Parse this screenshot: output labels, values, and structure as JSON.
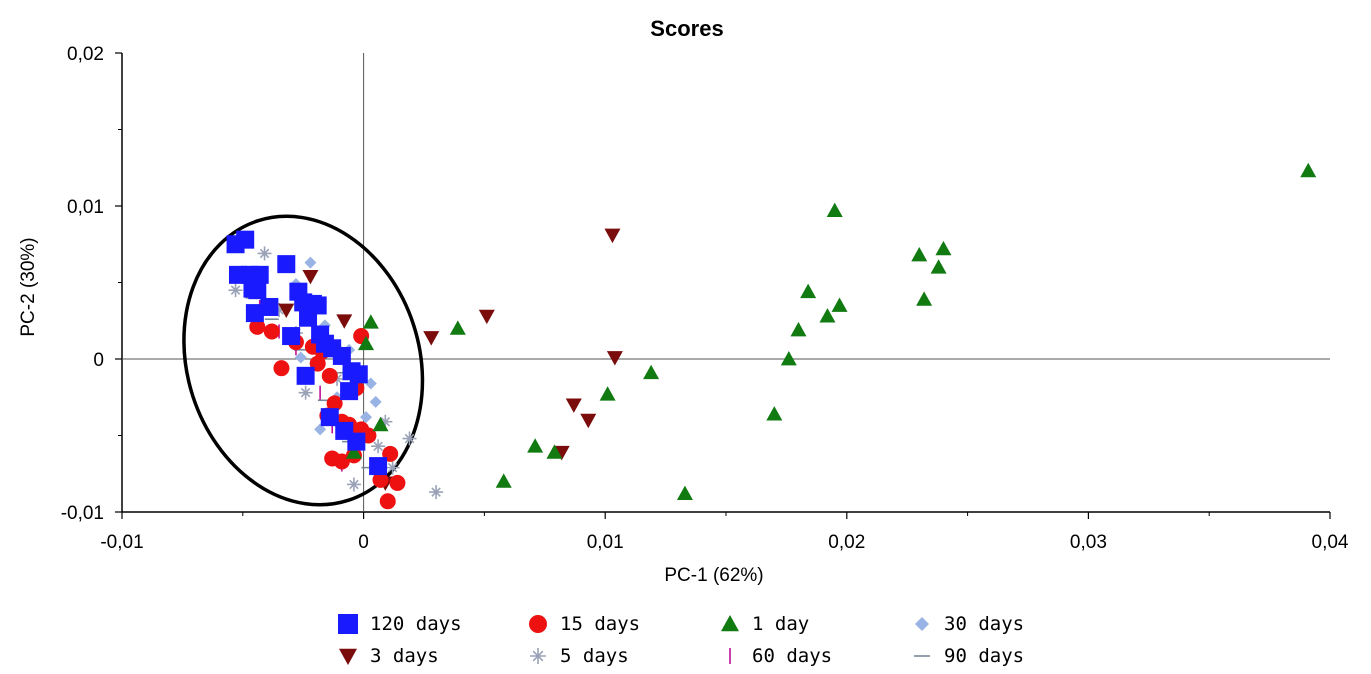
{
  "chart_data": {
    "type": "scatter",
    "title": "Scores",
    "xlabel": "PC-1 (62%)",
    "ylabel": "PC-2 (30%)",
    "xlim": [
      -0.01,
      0.04
    ],
    "ylim": [
      -0.01,
      0.02
    ],
    "x_ticks": [
      -0.01,
      0,
      0.01,
      0.02,
      0.03,
      0.04
    ],
    "x_tick_labels": [
      "-0,01",
      "0",
      "0,01",
      "0,02",
      "0,03",
      "0,04"
    ],
    "y_ticks": [
      -0.01,
      0,
      0.01,
      0.02
    ],
    "y_tick_labels": [
      "-0,01",
      "0",
      "0,01",
      "0,02"
    ],
    "grid": false,
    "zero_lines": true,
    "legend_position": "bottom",
    "annotation": {
      "shape": "ellipse",
      "center": [
        -0.0025,
        -0.0001
      ],
      "rx": 0.0048,
      "ry": 0.0096,
      "rotation_deg": -18
    },
    "series": [
      {
        "name": "120 days",
        "marker": "square",
        "color": "#1a1aff",
        "points": [
          [
            -0.0053,
            0.0075
          ],
          [
            -0.0049,
            0.0078
          ],
          [
            -0.0052,
            0.0055
          ],
          [
            -0.0047,
            0.0055
          ],
          [
            -0.0043,
            0.0055
          ],
          [
            -0.0046,
            0.0046
          ],
          [
            -0.0044,
            0.0045
          ],
          [
            -0.0045,
            0.003
          ],
          [
            -0.0039,
            0.0034
          ],
          [
            -0.0032,
            0.0062
          ],
          [
            -0.003,
            0.0015
          ],
          [
            -0.0027,
            0.0044
          ],
          [
            -0.0025,
            0.0037
          ],
          [
            -0.0023,
            0.0027
          ],
          [
            -0.0021,
            0.0036
          ],
          [
            -0.0019,
            0.0035
          ],
          [
            -0.0018,
            0.0016
          ],
          [
            -0.0016,
            0.001
          ],
          [
            -0.0013,
            0.0007
          ],
          [
            -0.0009,
            0.0002
          ],
          [
            -0.0005,
            -0.0008
          ],
          [
            -0.0024,
            -0.0011
          ],
          [
            -0.0002,
            -0.001
          ],
          [
            -0.0006,
            -0.0021
          ],
          [
            -0.0014,
            -0.0038
          ],
          [
            -0.0008,
            -0.0047
          ],
          [
            -0.0003,
            -0.0054
          ],
          [
            0.0006,
            -0.007
          ]
        ]
      },
      {
        "name": "15 days",
        "marker": "circle",
        "color": "#ee1111",
        "points": [
          [
            -0.0044,
            0.0021
          ],
          [
            -0.0038,
            0.0018
          ],
          [
            -0.0034,
            -0.0006
          ],
          [
            -0.0028,
            0.0011
          ],
          [
            -0.0021,
            0.0008
          ],
          [
            -0.0019,
            -0.0003
          ],
          [
            -0.0017,
            0.0005
          ],
          [
            -0.0014,
            -0.0011
          ],
          [
            -0.0012,
            -0.0029
          ],
          [
            -0.0015,
            -0.0037
          ],
          [
            -0.0009,
            -0.0041
          ],
          [
            -0.0006,
            -0.0043
          ],
          [
            -0.0003,
            -0.0019
          ],
          [
            -0.0001,
            -0.0046
          ],
          [
            0.0002,
            -0.005
          ],
          [
            -0.0013,
            -0.0065
          ],
          [
            -0.0009,
            -0.0067
          ],
          [
            -0.0004,
            -0.0063
          ],
          [
            0.0011,
            -0.0062
          ],
          [
            0.0014,
            -0.0081
          ],
          [
            0.0007,
            -0.0079
          ],
          [
            0.001,
            -0.0093
          ],
          [
            -0.0001,
            0.0015
          ]
        ]
      },
      {
        "name": "1 day",
        "marker": "triangle-up",
        "color": "#117a11",
        "points": [
          [
            0.0391,
            0.0123
          ],
          [
            0.0195,
            0.0097
          ],
          [
            0.023,
            0.0068
          ],
          [
            0.024,
            0.0072
          ],
          [
            0.0238,
            0.006
          ],
          [
            0.0232,
            0.0039
          ],
          [
            0.0184,
            0.0044
          ],
          [
            0.0197,
            0.0035
          ],
          [
            0.0192,
            0.0028
          ],
          [
            0.018,
            0.0019
          ],
          [
            0.0176,
            0.0
          ],
          [
            0.017,
            -0.0036
          ],
          [
            0.0119,
            -0.0009
          ],
          [
            0.0101,
            -0.0023
          ],
          [
            0.0133,
            -0.0088
          ],
          [
            0.0071,
            -0.0057
          ],
          [
            0.0079,
            -0.0061
          ],
          [
            0.0058,
            -0.008
          ],
          [
            0.0039,
            0.002
          ],
          [
            0.0003,
            0.0024
          ],
          [
            0.0001,
            0.001
          ],
          [
            -0.0004,
            -0.0061
          ],
          [
            0.0007,
            -0.0043
          ]
        ]
      },
      {
        "name": "30 days",
        "marker": "diamond",
        "color": "#99b4e4",
        "points": [
          [
            -0.0022,
            0.0063
          ],
          [
            -0.0028,
            0.0049
          ],
          [
            -0.0016,
            0.0022
          ],
          [
            -0.0006,
            0.0006
          ],
          [
            0.0003,
            -0.0016
          ],
          [
            0.0005,
            -0.0028
          ],
          [
            0.0001,
            -0.0038
          ],
          [
            -0.0018,
            -0.0046
          ],
          [
            -0.0011,
            -0.0025
          ],
          [
            -0.0026,
            0.0001
          ]
        ]
      },
      {
        "name": "3 days",
        "marker": "triangle-down",
        "color": "#7a0c0c",
        "points": [
          [
            0.0103,
            0.0081
          ],
          [
            0.0051,
            0.0028
          ],
          [
            0.0028,
            0.0014
          ],
          [
            0.0104,
            0.0001
          ],
          [
            0.0087,
            -0.003
          ],
          [
            0.0093,
            -0.004
          ],
          [
            0.0082,
            -0.0061
          ],
          [
            0.0009,
            -0.0081
          ],
          [
            -0.0008,
            0.0025
          ],
          [
            -0.0022,
            0.0054
          ],
          [
            -0.0032,
            0.0032
          ],
          [
            -0.0018,
            0.0012
          ]
        ]
      },
      {
        "name": "5 days",
        "marker": "star",
        "color": "#9aa2b8",
        "points": [
          [
            -0.0041,
            0.0069
          ],
          [
            -0.0053,
            0.0045
          ],
          [
            -0.0035,
            0.0032
          ],
          [
            -0.0028,
            0.0017
          ],
          [
            -0.0024,
            -0.0022
          ],
          [
            -0.0011,
            -0.0013
          ],
          [
            0.0019,
            -0.0052
          ],
          [
            0.003,
            -0.0087
          ],
          [
            0.0006,
            -0.0057
          ],
          [
            -0.0004,
            -0.0082
          ],
          [
            0.0009,
            -0.0041
          ],
          [
            0.0012,
            -0.0071
          ]
        ]
      },
      {
        "name": "60 days",
        "marker": "vline",
        "color": "#c0109a",
        "points": [
          [
            -0.0043,
            0.0034
          ],
          [
            -0.0035,
            0.0018
          ],
          [
            -0.0028,
            0.0007
          ],
          [
            -0.0018,
            -0.0022
          ],
          [
            -0.0009,
            -0.0069
          ],
          [
            -0.0013,
            -0.0044
          ],
          [
            -0.0004,
            -0.0048
          ],
          [
            -0.0021,
            0.0025
          ]
        ]
      },
      {
        "name": "90 days",
        "marker": "hline",
        "color": "#778899",
        "points": [
          [
            -0.0046,
            0.004
          ],
          [
            -0.0038,
            0.0026
          ],
          [
            -0.0026,
            0.0006
          ],
          [
            -0.0016,
            -0.0027
          ],
          [
            -0.0006,
            -0.0054
          ],
          [
            -0.0011,
            -0.0009
          ],
          [
            0.0002,
            -0.0071
          ]
        ]
      }
    ]
  }
}
